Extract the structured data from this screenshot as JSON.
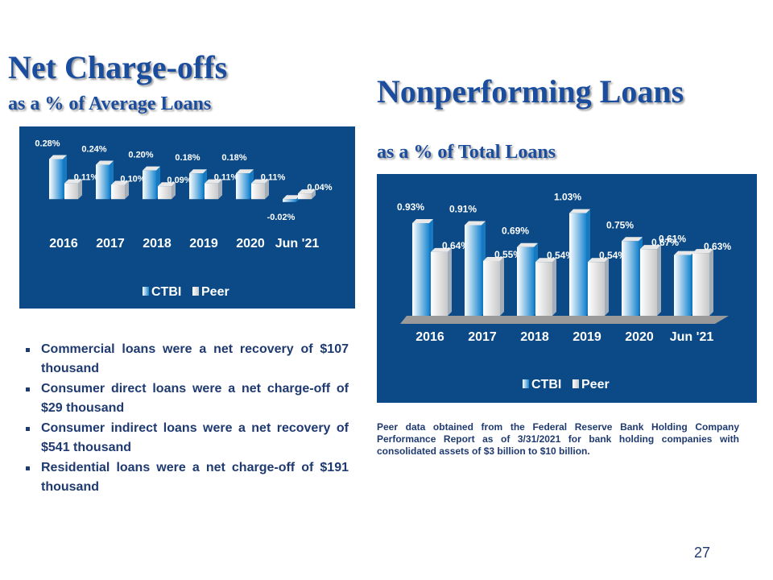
{
  "chart_data": [
    {
      "type": "bar",
      "title": "Net Charge-offs",
      "subtitle": "as a % of Average Loans",
      "categories": [
        "2016",
        "2017",
        "2018",
        "2019",
        "2020",
        "Jun '21"
      ],
      "series": [
        {
          "name": "CTBI",
          "color": "#1a86d0",
          "values": [
            0.28,
            0.24,
            0.2,
            0.18,
            0.18,
            -0.02
          ],
          "value_labels": [
            "0.28%",
            "0.24%",
            "0.20%",
            "0.18%",
            "0.18%",
            "-0.02%"
          ]
        },
        {
          "name": "Peer",
          "color": "#c8c8c8",
          "values": [
            0.11,
            0.1,
            0.09,
            0.11,
            0.11,
            0.04
          ],
          "value_labels": [
            "0.11%",
            "0.10%",
            "0.09%",
            "0.11%",
            "0.11%",
            "0.04%"
          ]
        }
      ],
      "ylim": [
        -0.1,
        0.35
      ],
      "legend": "bottom"
    },
    {
      "type": "bar",
      "title": "Nonperforming Loans",
      "subtitle": "as a % of Total Loans",
      "categories": [
        "2016",
        "2017",
        "2018",
        "2019",
        "2020",
        "Jun '21"
      ],
      "series": [
        {
          "name": "CTBI",
          "color": "#1a86d0",
          "values": [
            0.93,
            0.91,
            0.69,
            1.03,
            0.75,
            0.61
          ],
          "value_labels": [
            "0.93%",
            "0.91%",
            "0.69%",
            "1.03%",
            "0.75%",
            "0.61%"
          ]
        },
        {
          "name": "Peer",
          "color": "#c8c8c8",
          "values": [
            0.64,
            0.55,
            0.54,
            0.54,
            0.67,
            0.63
          ],
          "value_labels": [
            "0.64%",
            "0.55%",
            "0.54%",
            "0.54%",
            "0.67%",
            "0.63%"
          ]
        }
      ],
      "ylim": [
        0,
        1.1
      ],
      "legend": "bottom"
    }
  ],
  "bullets": [
    "Commercial loans were a net recovery of $107 thousand",
    "Consumer direct loans were a net charge-off of $29 thousand",
    "Consumer indirect loans were a net recovery of $541 thousand",
    "Residential loans were a net charge-off of $191 thousand"
  ],
  "footnote": "Peer data obtained from the Federal Reserve Bank Holding Company Performance Report as of 3/31/2021 for bank holding companies with consolidated assets of $3 billion to $10 billion.",
  "page_number": "27"
}
